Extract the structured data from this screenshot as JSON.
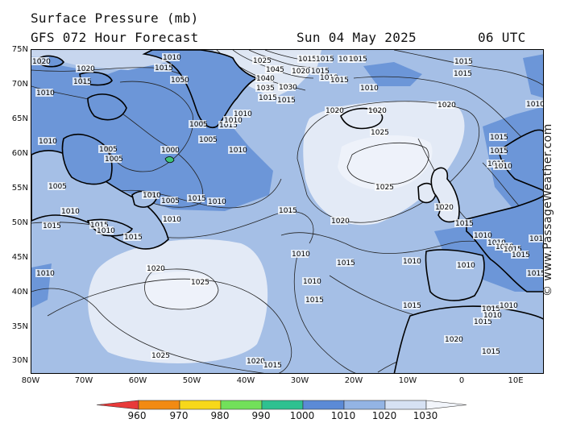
{
  "header": {
    "title": "Surface Pressure (mb)",
    "subtitle": "GFS 072 Hour Forecast",
    "valid_date": "Sun 04 May 2025",
    "valid_time": "06 UTC"
  },
  "watermark": "© www.PassageWeather.com",
  "axes": {
    "lat_labels": [
      "75N",
      "70N",
      "65N",
      "60N",
      "55N",
      "50N",
      "45N",
      "40N",
      "35N",
      "30N"
    ],
    "lon_labels": [
      "80W",
      "70W",
      "60W",
      "50W",
      "40W",
      "30W",
      "20W",
      "10W",
      "0",
      "10E"
    ]
  },
  "isobar_labels": [
    "1020",
    "1020",
    "1015",
    "1010",
    "1015",
    "1050",
    "1025",
    "1015",
    "1015",
    "1015",
    "1045",
    "1020",
    "1015",
    "1040",
    "1010",
    "1035",
    "1030",
    "1015",
    "1015",
    "1015",
    "1010",
    "1015",
    "1010",
    "1015",
    "1015",
    "1020",
    "1020",
    "1010",
    "1020",
    "1010",
    "1005",
    "1015",
    "1010",
    "1000",
    "1005",
    "1010",
    "1015",
    "1015",
    "1025",
    "1015",
    "1010",
    "1010",
    "1005",
    "1005",
    "1005",
    "1010",
    "1015",
    "1010",
    "1005",
    "1025",
    "1010",
    "1015",
    "1020",
    "1020",
    "1015",
    "1015",
    "1015",
    "1010",
    "1015",
    "1010",
    "1010",
    "1010",
    "1020",
    "1010",
    "1015",
    "1010",
    "1010",
    "1015",
    "1015",
    "1010",
    "1010",
    "1015",
    "1025",
    "1010",
    "1015",
    "1010",
    "1015",
    "1015",
    "1015",
    "1020",
    "1025",
    "1020",
    "1015",
    "1010",
    "1015",
    "1010"
  ],
  "colorbar": {
    "ticks": [
      "960",
      "970",
      "980",
      "990",
      "1000",
      "1010",
      "1020",
      "1030"
    ],
    "colors": [
      "#e83a3a",
      "#f28a12",
      "#f7d81a",
      "#72e05a",
      "#2ec190",
      "#5b8ad6",
      "#93b4e4",
      "#d6e1f3"
    ]
  },
  "colors": {
    "ocean_base": "#a5bfe6",
    "low_fill": "#6c96d8",
    "high_fill": "#e3eaf6",
    "very_high_fill": "#c7d6ee"
  }
}
